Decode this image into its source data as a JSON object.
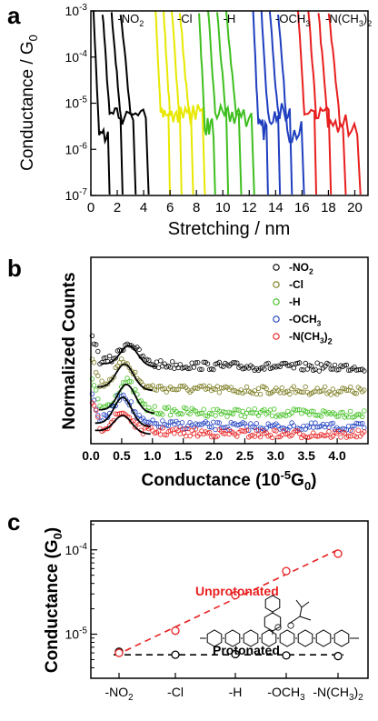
{
  "panels": {
    "a": {
      "letter": "a",
      "xlabel": "Stretching / nm",
      "ylabel": "Conductance / G",
      "ylabel_sub": "0",
      "x_ticks": [
        "0",
        "2",
        "4",
        "6",
        "8",
        "10",
        "12",
        "14",
        "16",
        "18",
        "20"
      ],
      "y_ticks": [
        {
          "base": "10",
          "exp": "-3"
        },
        {
          "base": "10",
          "exp": "-4"
        },
        {
          "base": "10",
          "exp": "-5"
        },
        {
          "base": "10",
          "exp": "-6"
        },
        {
          "base": "10",
          "exp": "-7"
        }
      ],
      "series": [
        {
          "label": "-NO",
          "sub": "2",
          "tail": "",
          "color": "#000000",
          "x_start": 0.2,
          "x_end": 4.0
        },
        {
          "label": "-Cl",
          "sub": "",
          "tail": "",
          "color": "#e8e800",
          "x_start": 4.9,
          "x_end": 8.3
        },
        {
          "label": "-H",
          "sub": "",
          "tail": "",
          "color": "#3fbf1f",
          "x_start": 8.2,
          "x_end": 12.0
        },
        {
          "label": "-OCH",
          "sub": "3",
          "tail": "",
          "color": "#1f3fbf",
          "x_start": 12.3,
          "x_end": 15.8
        },
        {
          "label": "-N(CH",
          "sub": "3",
          "tail": ")2",
          "color": "#e81f1f",
          "x_start": 15.7,
          "x_end": 20.0
        }
      ]
    },
    "b": {
      "letter": "b",
      "xlabel": "Conductance (10",
      "xlabel_sup": "-5",
      "xlabel_tail": "G",
      "xlabel_sub": "0",
      "xlabel_close": ")",
      "ylabel": "Normalized Counts",
      "x_ticks": [
        "0.0",
        "0.5",
        "1.0",
        "1.5",
        "2.0",
        "2.5",
        "3.0",
        "3.5",
        "4.0"
      ],
      "legend": [
        {
          "label": "-NO",
          "sub": "2",
          "color": "#000000"
        },
        {
          "label": "-Cl",
          "sub": "",
          "color": "#7a7a1f"
        },
        {
          "label": "-H",
          "sub": "",
          "color": "#3fbf1f"
        },
        {
          "label": "-OCH",
          "sub": "3",
          "color": "#1f3fbf"
        },
        {
          "label": "-N(CH",
          "sub": "3",
          "tail": ")2",
          "color": "#e81f1f"
        }
      ]
    },
    "c": {
      "letter": "c",
      "ylabel": "Conductance (G",
      "ylabel_sub": "0",
      "ylabel_close": ")",
      "y_ticks": [
        {
          "base": "10",
          "exp": "-4"
        },
        {
          "base": "10",
          "exp": "-5"
        }
      ],
      "unprotonated_label": "Unprotonated",
      "protonated_label": "Protonated",
      "categories": [
        "-NO2",
        "-Cl",
        "-H",
        "-OCH3",
        "-N(CH3)2"
      ]
    }
  },
  "chart_data": [
    {
      "type": "line",
      "panel": "a",
      "title": "",
      "xlabel": "Stretching / nm",
      "ylabel": "Conductance / G0",
      "xlim": [
        0,
        21
      ],
      "ylim": [
        1e-07,
        0.001
      ],
      "yscale": "log",
      "series": [
        {
          "name": "-NO2",
          "x_range": [
            0.2,
            4.0
          ]
        },
        {
          "name": "-Cl",
          "x_range": [
            4.9,
            8.3
          ]
        },
        {
          "name": "-H",
          "x_range": [
            8.2,
            12.0
          ]
        },
        {
          "name": "-OCH3",
          "x_range": [
            12.3,
            15.8
          ]
        },
        {
          "name": "-N(CH3)2",
          "x_range": [
            15.7,
            20.0
          ]
        }
      ]
    },
    {
      "type": "scatter",
      "panel": "b",
      "title": "",
      "xlabel": "Conductance (10^-5 G0)",
      "ylabel": "Normalized Counts",
      "xlim": [
        0,
        4.5
      ],
      "series": [
        {
          "name": "-NO2",
          "peak_x": 0.62
        },
        {
          "name": "-Cl",
          "peak_x": 0.55
        },
        {
          "name": "-H",
          "peak_x": 0.58
        },
        {
          "name": "-OCH3",
          "peak_x": 0.52
        },
        {
          "name": "-N(CH3)2",
          "peak_x": 0.52
        }
      ]
    },
    {
      "type": "scatter",
      "panel": "c",
      "title": "",
      "xlabel": "",
      "ylabel": "Conductance (G0)",
      "yscale": "log",
      "ylim": [
        3e-06,
        0.00022
      ],
      "categories": [
        "-NO2",
        "-Cl",
        "-H",
        "-OCH3",
        "-N(CH3)2"
      ],
      "series": [
        {
          "name": "Unprotonated",
          "values": [
            6e-06,
            1.1e-05,
            2.9e-05,
            5.6e-05,
            9e-05
          ],
          "color": "#e81f1f"
        },
        {
          "name": "Protonated",
          "values": [
            6.2e-06,
            5.7e-06,
            5.8e-06,
            5.6e-06,
            5.5e-06
          ],
          "color": "#000000"
        }
      ]
    }
  ]
}
